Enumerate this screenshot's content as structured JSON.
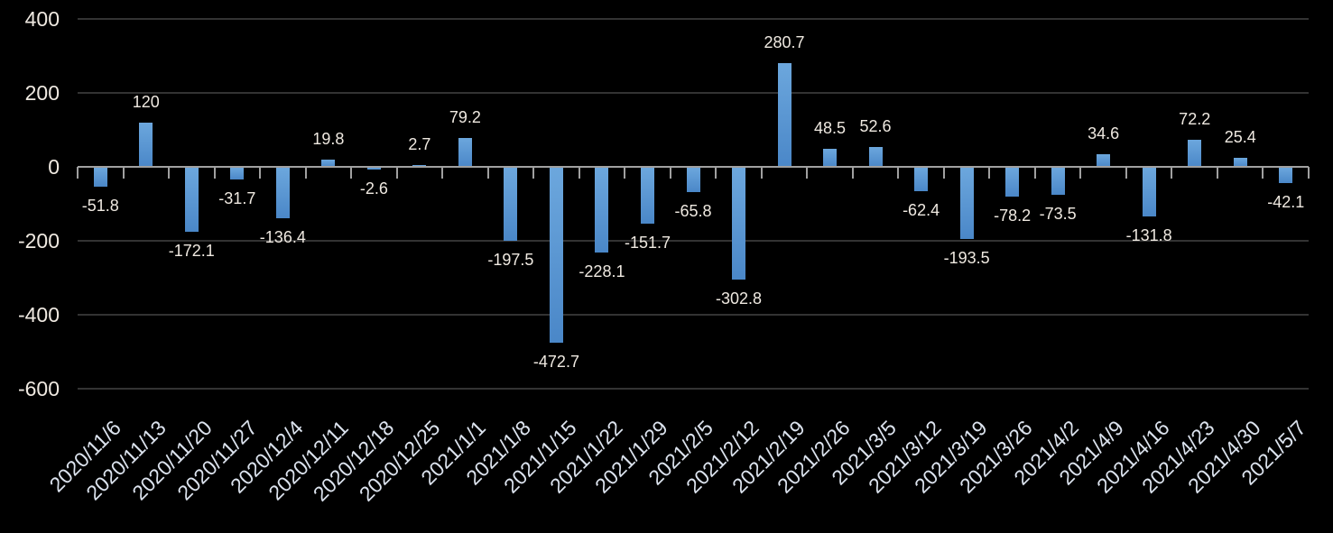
{
  "chart_data": {
    "type": "bar",
    "title": "",
    "xlabel": "",
    "ylabel": "",
    "categories": [
      "2020/11/6",
      "2020/11/13",
      "2020/11/20",
      "2020/11/27",
      "2020/12/4",
      "2020/12/11",
      "2020/12/18",
      "2020/12/25",
      "2021/1/1",
      "2021/1/8",
      "2021/1/15",
      "2021/1/22",
      "2021/1/29",
      "2021/2/5",
      "2021/2/12",
      "2021/2/19",
      "2021/2/26",
      "2021/3/5",
      "2021/3/12",
      "2021/3/19",
      "2021/3/26",
      "2021/4/2",
      "2021/4/9",
      "2021/4/16",
      "2021/4/23",
      "2021/4/30",
      "2021/5/7"
    ],
    "values": [
      -51.8,
      120,
      -172.1,
      -31.7,
      -136.4,
      19.8,
      -2.6,
      2.7,
      79.2,
      -197.5,
      -472.7,
      -228.1,
      -151.7,
      -65.8,
      -302.8,
      280.7,
      48.5,
      52.6,
      -62.4,
      -193.5,
      -78.2,
      -73.5,
      34.6,
      -131.8,
      72.2,
      25.4,
      -42.1
    ],
    "value_labels": [
      "-51.8",
      "120",
      "-172.1",
      "-31.7",
      "-136.4",
      "19.8",
      "-2.6",
      "2.7",
      "79.2",
      "-197.5",
      "-472.7",
      "-228.1",
      "-151.7",
      "-65.8",
      "-302.8",
      "280.7",
      "48.5",
      "52.6",
      "-62.4",
      "-193.5",
      "-78.2",
      "-73.5",
      "34.6",
      "-131.8",
      "72.2",
      "25.4",
      "-42.1"
    ],
    "y_axis": {
      "ticks": [
        400,
        200,
        0,
        -200,
        -400,
        -600
      ],
      "ylim": [
        -600,
        400
      ],
      "grid": true
    },
    "legend_position": "none",
    "colors": {
      "background": "#000000",
      "bar_gradient_top": "#6CA7DD",
      "bar_gradient_bottom": "#4A87C8",
      "axis_line": "#A0A0A0",
      "gridline": "#333333",
      "value_label": "#EFE9E1",
      "y_axis_label": "#EFE9E1",
      "date_label": "#DCE3EE"
    }
  }
}
